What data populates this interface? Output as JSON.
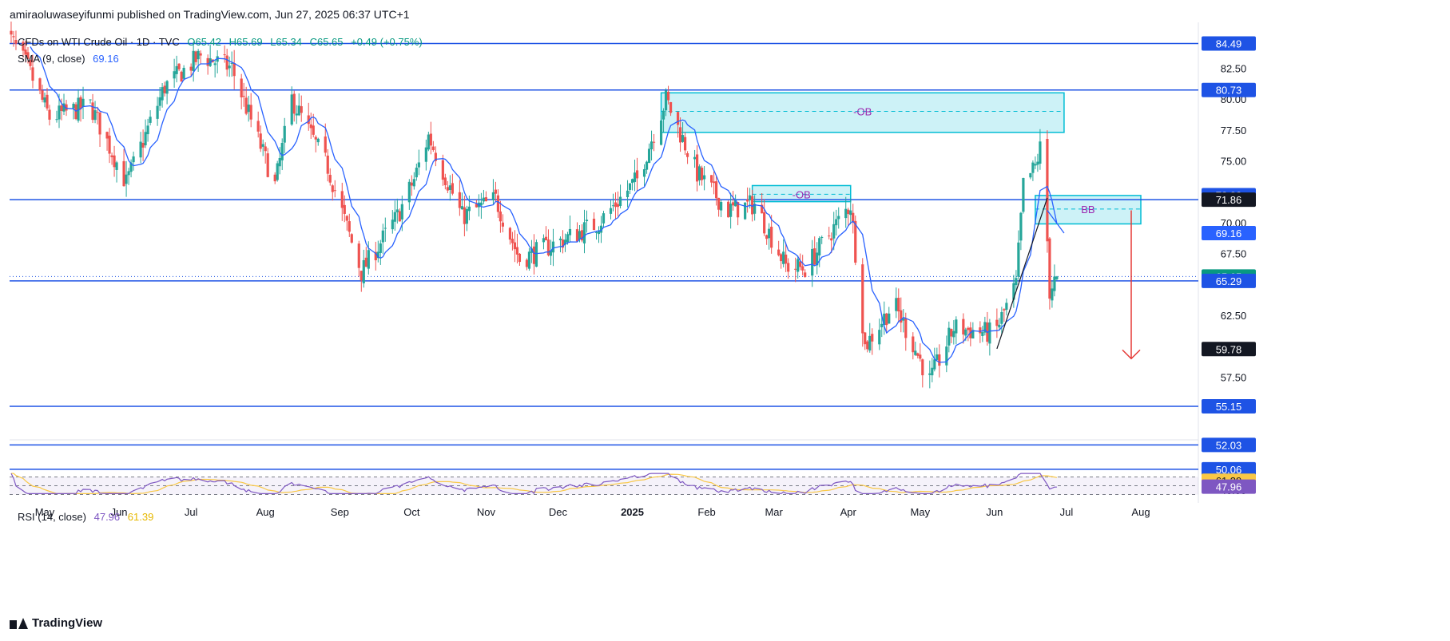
{
  "publisher_text": "amiraoluwaseyifunmi published on TradingView.com, Jun 27, 2025 06:37 UTC+1",
  "brand": "TradingView",
  "legend": {
    "symbol": "CFDs on WTI Crude Oil · 1D · TVC",
    "open": "O65.42",
    "high": "H65.69",
    "low": "L65.34",
    "close": "C65.65",
    "change": "+0.49 (+0.75%)",
    "sma_label": "SMA (9, close)",
    "sma_value": "69.16",
    "rsi_label": "RSI (14, close)",
    "rsi_value": "47.96",
    "rsi_ma_value": "61.39"
  },
  "colors": {
    "up": "#26a69a",
    "down": "#ef5350",
    "sma": "#2962ff",
    "hline": "#1e53e5",
    "zone_fill": "#b2ebf2",
    "zone_stroke": "#00bcd4",
    "zone_text": "#9c27b0",
    "rsi": "#7e57c2",
    "rsi_ma": "#f9c846",
    "arrow": "#e53935",
    "text": "#131722"
  },
  "chart_data": {
    "type": "candlestick",
    "instrument": "CFDs on WTI Crude Oil",
    "timeframe": "1D",
    "y_axis_range": [
      48.5,
      86.2
    ],
    "y_ticks": [
      57.5,
      62.5,
      67.5,
      70.0,
      75.0,
      77.5,
      80.0,
      82.5
    ],
    "x_axis_labels": [
      {
        "label": "May",
        "date": "2024-05-01"
      },
      {
        "label": "Jun",
        "date": "2024-06-01"
      },
      {
        "label": "Jul",
        "date": "2024-07-01"
      },
      {
        "label": "Aug",
        "date": "2024-08-01"
      },
      {
        "label": "Sep",
        "date": "2024-09-01"
      },
      {
        "label": "Oct",
        "date": "2024-10-01"
      },
      {
        "label": "Nov",
        "date": "2024-11-01"
      },
      {
        "label": "Dec",
        "date": "2024-12-01"
      },
      {
        "label": "2025",
        "date": "2025-01-01",
        "bold": true
      },
      {
        "label": "Feb",
        "date": "2025-02-01"
      },
      {
        "label": "Mar",
        "date": "2025-03-01"
      },
      {
        "label": "Apr",
        "date": "2025-04-01"
      },
      {
        "label": "May",
        "date": "2025-05-01"
      },
      {
        "label": "Jun",
        "date": "2025-06-01"
      },
      {
        "label": "Jul",
        "date": "2025-07-01"
      },
      {
        "label": "Aug",
        "date": "2025-08-01"
      }
    ],
    "price_path": [
      [
        "2024-04-15",
        85.4
      ],
      [
        "2024-04-24",
        82.5
      ],
      [
        "2024-05-03",
        78.5
      ],
      [
        "2024-05-20",
        79.5
      ],
      [
        "2024-06-04",
        73.2
      ],
      [
        "2024-06-20",
        81.0
      ],
      [
        "2024-07-05",
        83.5
      ],
      [
        "2024-07-18",
        82.5
      ],
      [
        "2024-08-05",
        73.0
      ],
      [
        "2024-08-12",
        80.0
      ],
      [
        "2024-08-27",
        74.5
      ],
      [
        "2024-09-05",
        69.0
      ],
      [
        "2024-09-10",
        66.0
      ],
      [
        "2024-09-25",
        70.5
      ],
      [
        "2024-10-02",
        73.5
      ],
      [
        "2024-10-08",
        77.0
      ],
      [
        "2024-10-22",
        70.5
      ],
      [
        "2024-11-05",
        71.9
      ],
      [
        "2024-11-15",
        67.0
      ],
      [
        "2024-12-02",
        68.5
      ],
      [
        "2024-12-18",
        70.0
      ],
      [
        "2025-01-03",
        73.5
      ],
      [
        "2025-01-15",
        80.0
      ],
      [
        "2025-01-28",
        74.0
      ],
      [
        "2025-02-10",
        71.0
      ],
      [
        "2025-02-21",
        71.5
      ],
      [
        "2025-03-06",
        66.5
      ],
      [
        "2025-03-14",
        66.3
      ],
      [
        "2025-04-02",
        71.5
      ],
      [
        "2025-04-08",
        60.0
      ],
      [
        "2025-04-20",
        63.5
      ],
      [
        "2025-05-05",
        57.2
      ],
      [
        "2025-05-15",
        61.5
      ],
      [
        "2025-06-01",
        61.0
      ],
      [
        "2025-06-10",
        65.0
      ],
      [
        "2025-06-13",
        73.0
      ],
      [
        "2025-06-18",
        74.5
      ],
      [
        "2025-06-20",
        76.0
      ],
      [
        "2025-06-23",
        68.5
      ],
      [
        "2025-06-24",
        64.5
      ],
      [
        "2025-06-27",
        65.65
      ]
    ],
    "candles_note": "intermediate daily candles generated deterministically between path points",
    "sma": {
      "period": 9,
      "last": 69.16
    },
    "horizontal_levels": [
      84.49,
      80.73,
      71.86,
      65.29,
      55.15,
      52.03,
      50.06
    ],
    "price_labels": [
      {
        "value": 84.49,
        "style": "level"
      },
      {
        "value": 80.73,
        "style": "level"
      },
      {
        "value": 72.22,
        "style": "level"
      },
      {
        "value": 71.86,
        "style": "dark"
      },
      {
        "value": 69.16,
        "style": "sma"
      },
      {
        "value": 65.65,
        "style": "last"
      },
      {
        "value": 65.29,
        "style": "level"
      },
      {
        "value": 59.78,
        "style": "dark"
      },
      {
        "value": 55.15,
        "style": "level"
      },
      {
        "value": 52.03,
        "style": "level"
      },
      {
        "value": 50.06,
        "style": "level"
      }
    ],
    "zones": [
      {
        "label": "-OB",
        "start": "2025-01-13",
        "end": "2025-06-30",
        "top": 80.5,
        "bottom": 77.3,
        "mid": 79.0
      },
      {
        "label": "-OB",
        "start": "2025-02-20",
        "end": "2025-04-02",
        "top": 73.0,
        "bottom": 71.7,
        "mid": 72.3
      },
      {
        "label": "BB",
        "start": "2025-06-18",
        "end": "2025-08-01",
        "top": 72.2,
        "bottom": 69.9,
        "mid": 71.1
      }
    ],
    "projection_arrow": {
      "from": [
        "2025-07-28",
        71.0
      ],
      "to": [
        "2025-07-28",
        59.0
      ]
    },
    "rsi": {
      "period": 14,
      "value": 47.96,
      "ma": 61.39,
      "ticks": [
        80.0,
        40.0
      ],
      "bands": [
        70,
        50,
        30
      ]
    },
    "rsi_price_labels": [
      61.39,
      47.96
    ]
  }
}
